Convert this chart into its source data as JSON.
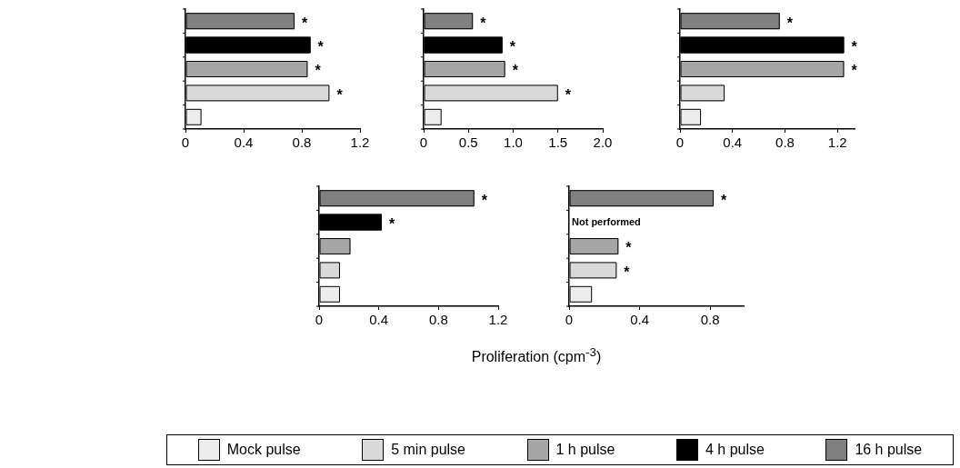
{
  "chart_data": [
    {
      "type": "bar",
      "orientation": "horizontal",
      "categories": [
        null
      ],
      "xlim": [
        0,
        1.2
      ],
      "xticks": [
        0,
        0.4,
        0.8,
        1.2
      ],
      "tick_labels": "x",
      "legend": "bottom",
      "series": [
        {
          "name": "Mock pulse",
          "color": "#ededed",
          "values": [
            0.11
          ],
          "value_labels": [
            null
          ]
        },
        {
          "name": "5 min pulse",
          "color": "#d9d9d9",
          "values": [
            0.99
          ],
          "value_labels": [
            "*"
          ]
        },
        {
          "name": "1 h pulse",
          "color": "#a6a6a6",
          "values": [
            0.84
          ],
          "value_labels": [
            "*"
          ]
        },
        {
          "name": "4 h pulse",
          "color": "#000000",
          "values": [
            0.86
          ],
          "value_labels": [
            "*"
          ]
        },
        {
          "name": "16 h pulse",
          "color": "#808080",
          "values": [
            0.75
          ],
          "value_labels": [
            "*"
          ]
        }
      ]
    },
    {
      "type": "bar",
      "orientation": "horizontal",
      "categories": [
        null
      ],
      "xlim": [
        0,
        2.0
      ],
      "xticks": [
        0,
        {
          "value": 0.5,
          "label": "0.5"
        },
        {
          "value": 1,
          "label": "1.0"
        },
        {
          "value": 1.5,
          "label": "1.5"
        },
        {
          "value": 2,
          "label": "2.0"
        }
      ],
      "tick_labels": "x",
      "series": [
        {
          "color": "#ededed",
          "values": [
            0.2
          ],
          "value_labels": [
            null
          ]
        },
        {
          "color": "#d9d9d9",
          "values": [
            1.5
          ],
          "value_labels": [
            "*"
          ]
        },
        {
          "color": "#a6a6a6",
          "values": [
            0.91
          ],
          "value_labels": [
            "*"
          ]
        },
        {
          "color": "#000000",
          "values": [
            0.88
          ],
          "value_labels": [
            "*"
          ]
        },
        {
          "color": "#808080",
          "values": [
            0.55
          ],
          "value_labels": [
            "*"
          ]
        }
      ]
    },
    {
      "type": "bar",
      "orientation": "horizontal",
      "categories": [
        null
      ],
      "xlim": [
        0,
        1.33
      ],
      "xticks": [
        0,
        0.4,
        0.8,
        1.2
      ],
      "tick_labels": "x",
      "series": [
        {
          "color": "#ededed",
          "values": [
            0.16
          ],
          "value_labels": [
            null
          ]
        },
        {
          "color": "#d9d9d9",
          "values": [
            0.34
          ],
          "value_labels": [
            null
          ]
        },
        {
          "color": "#a6a6a6",
          "values": [
            1.25
          ],
          "value_labels": [
            "*"
          ]
        },
        {
          "color": "#000000",
          "values": [
            1.25
          ],
          "value_labels": [
            "*"
          ]
        },
        {
          "color": "#808080",
          "values": [
            0.76
          ],
          "value_labels": [
            "*"
          ]
        }
      ]
    },
    {
      "type": "bar",
      "orientation": "horizontal",
      "categories": [
        null
      ],
      "xlim": [
        0,
        1.2
      ],
      "xticks": [
        0,
        0.4,
        0.8,
        1.2
      ],
      "tick_labels": "x",
      "xlabel": "Proliferation (cpm$^{-3}$)",
      "series": [
        {
          "color": "#ededed",
          "values": [
            0.14
          ],
          "value_labels": [
            null
          ]
        },
        {
          "color": "#d9d9d9",
          "values": [
            0.14
          ],
          "value_labels": [
            null
          ]
        },
        {
          "color": "#a6a6a6",
          "values": [
            0.21
          ],
          "value_labels": [
            null
          ]
        },
        {
          "color": "#000000",
          "values": [
            0.42
          ],
          "value_labels": [
            "*"
          ]
        },
        {
          "color": "#808080",
          "values": [
            1.04
          ],
          "value_labels": [
            "*"
          ]
        }
      ]
    },
    {
      "type": "bar",
      "orientation": "horizontal",
      "categories": [
        null
      ],
      "xlim": [
        0,
        0.99
      ],
      "xticks": [
        0,
        0.4,
        0.8
      ],
      "tick_labels": "x",
      "annotations": [
        "Not performed"
      ],
      "series": [
        {
          "color": "#ededed",
          "values": [
            0.13
          ],
          "value_labels": [
            null
          ]
        },
        {
          "color": "#d9d9d9",
          "values": [
            0.27
          ],
          "value_labels": [
            "*"
          ]
        },
        {
          "color": "#a6a6a6",
          "values": [
            0.28
          ],
          "value_labels": [
            "*"
          ]
        },
        {
          "color": "#000000",
          "values": [
            null
          ],
          "value_labels": [
            null
          ]
        },
        {
          "color": "#808080",
          "values": [
            0.82
          ],
          "value_labels": [
            "*"
          ]
        }
      ]
    }
  ]
}
